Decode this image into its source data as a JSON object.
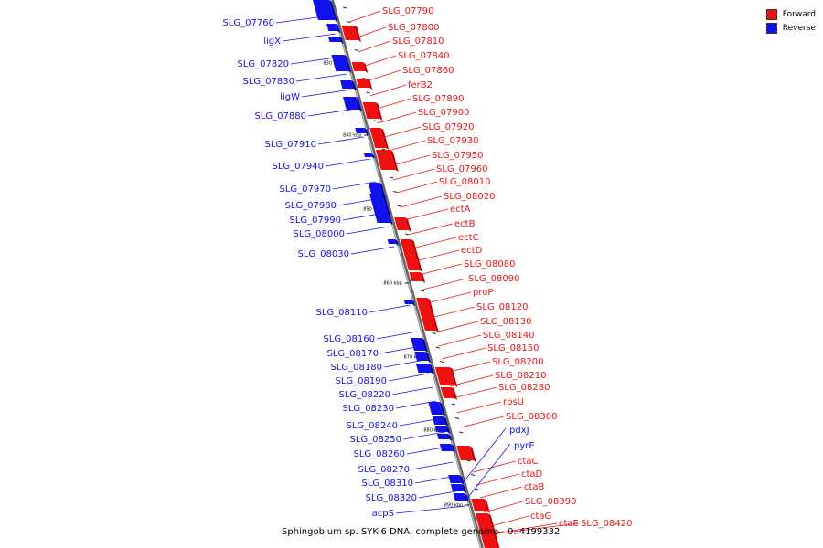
{
  "legend": {
    "forward_label": "Forward",
    "reverse_label": "Reverse",
    "forward_color": "#ee1111",
    "reverse_color": "#1111ee"
  },
  "caption": "Sphingobium sp. SYK-6 DNA, complete genome - 0..4199332",
  "colors": {
    "forward": "#ee1111",
    "reverse": "#1111ee",
    "backbone": "#888888"
  },
  "kbp_ticks": [
    "830 kbp",
    "840 kbp",
    "850 kbp",
    "860 kbp",
    "870 kbp",
    "880 kbp",
    "890 kbp"
  ],
  "forward_genes": [
    "SLG_07790",
    "SLG_07800",
    "SLG_07810",
    "SLG_07840",
    "SLG_07860",
    "ferB2",
    "SLG_07890",
    "SLG_07900",
    "SLG_07920",
    "SLG_07930",
    "SLG_07950",
    "SLG_07960",
    "SLG_08010",
    "SLG_08020",
    "ectA",
    "ectB",
    "ectC",
    "ectD",
    "SLG_08080",
    "SLG_08090",
    "proP",
    "SLG_08120",
    "SLG_08130",
    "SLG_08140",
    "SLG_08150",
    "SLG_08200",
    "SLG_08210",
    "SLG_08280",
    "rpsU",
    "SLG_08300",
    "ctaC",
    "ctaD",
    "ctaB",
    "SLG_08390",
    "ctaG",
    "ctaE",
    "SLG_08420"
  ],
  "reverse_genes": [
    "SLG_07760",
    "ligX",
    "SLG_07820",
    "SLG_07830",
    "ligW",
    "SLG_07880",
    "SLG_07910",
    "SLG_07940",
    "SLG_07970",
    "SLG_07980",
    "SLG_07990",
    "SLG_08000",
    "SLG_08030",
    "SLG_08110",
    "SLG_08160",
    "SLG_08170",
    "SLG_08180",
    "SLG_08190",
    "SLG_08220",
    "SLG_08230",
    "SLG_08240",
    "SLG_08250",
    "SLG_08260",
    "SLG_08270",
    "SLG_08310",
    "SLG_08320",
    "acpS",
    "pdxJ",
    "pyrE"
  ]
}
